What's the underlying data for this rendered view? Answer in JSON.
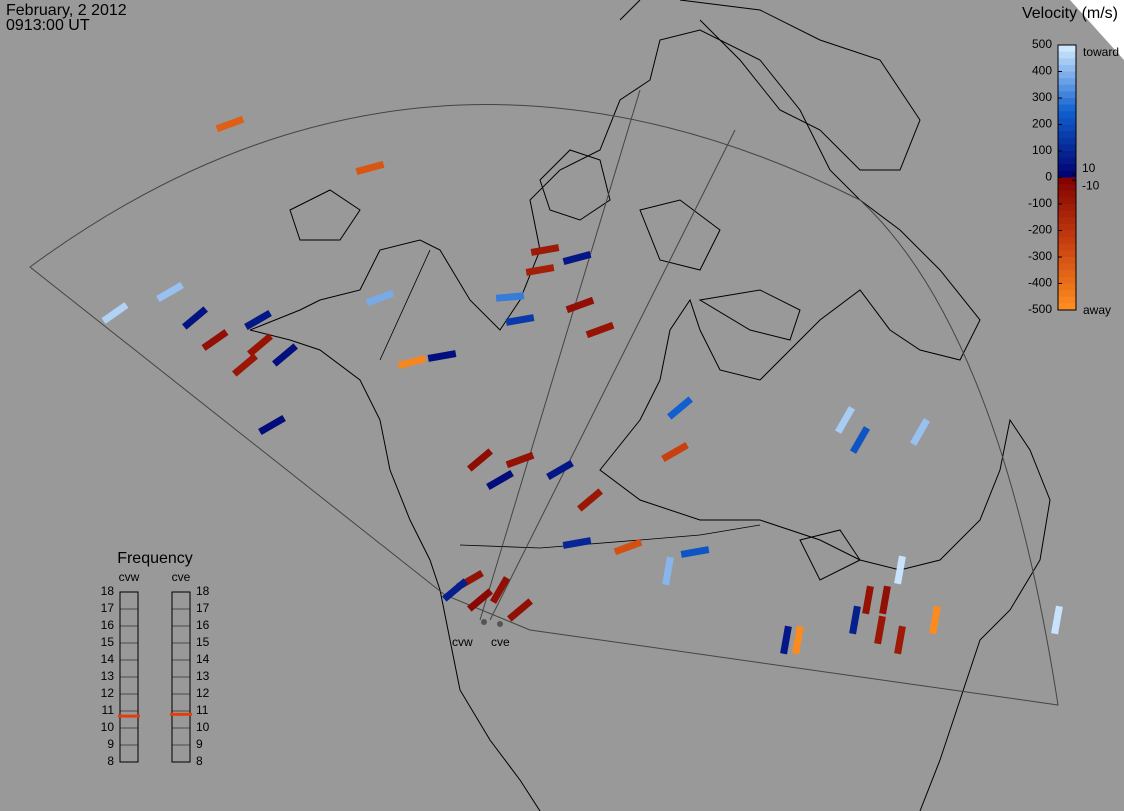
{
  "header": {
    "date": "February, 2 2012",
    "time": "0913:00 UT"
  },
  "colorbar": {
    "title": "Velocity (m/s)",
    "lim": [
      -500,
      500
    ],
    "ticks": [
      500,
      400,
      300,
      200,
      100,
      0,
      -100,
      -200,
      -300,
      -400,
      -500
    ],
    "side_ticks": [
      10,
      -10
    ],
    "top_label": "toward",
    "bottom_label": "away"
  },
  "frequency": {
    "title": "Frequency",
    "ylim": [
      8,
      18
    ],
    "yticks": [
      8,
      9,
      10,
      11,
      12,
      13,
      14,
      15,
      16,
      17,
      18
    ],
    "radars": [
      {
        "name": "cvw",
        "value": 10.7
      },
      {
        "name": "cve",
        "value": 10.8
      }
    ]
  },
  "echoes": {
    "values": [
      -350,
      -320,
      450,
      420,
      380,
      50,
      60,
      -80,
      -60,
      30,
      -90,
      40,
      -100,
      -120,
      60,
      150,
      300,
      -60,
      -80,
      40,
      -50,
      30,
      -70,
      60,
      -90,
      250,
      -250,
      -30,
      -60,
      220,
      400,
      440,
      220,
      480,
      420,
      -480,
      -300,
      60,
      -70,
      -60,
      80,
      -90,
      -100,
      -480,
      480,
      -70,
      80,
      -60,
      100,
      -470
    ]
  },
  "radar_sites": [
    "cvw",
    "cve"
  ]
}
